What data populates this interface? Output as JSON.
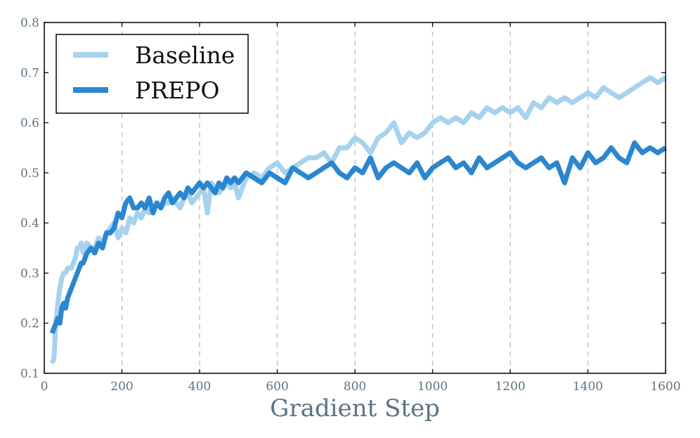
{
  "chart_data": {
    "type": "line",
    "title": "",
    "xlabel": "Gradient Step",
    "ylabel": "",
    "xlim": [
      0,
      1600
    ],
    "ylim": [
      0.1,
      0.8
    ],
    "xticks": [
      0,
      200,
      400,
      600,
      800,
      1000,
      1200,
      1400,
      1600
    ],
    "xtick_labels": [
      "0",
      "200",
      "400",
      "600",
      "800",
      "1000",
      "1200",
      "1400",
      "1600"
    ],
    "yticks": [
      0.1,
      0.2,
      0.3,
      0.4,
      0.5,
      0.6,
      0.7,
      0.8
    ],
    "ytick_labels": [
      "0.1",
      "0.2",
      "0.3",
      "0.4",
      "0.5",
      "0.6",
      "0.7",
      "0.8"
    ],
    "grid": "vertical dashed",
    "legend": "top-left",
    "series": [
      {
        "name": "Baseline",
        "color": "#a6d2ee",
        "x": [
          20,
          25,
          30,
          35,
          40,
          45,
          50,
          55,
          60,
          65,
          70,
          75,
          80,
          85,
          90,
          95,
          100,
          110,
          120,
          130,
          140,
          150,
          160,
          170,
          180,
          190,
          200,
          210,
          220,
          230,
          240,
          250,
          260,
          270,
          280,
          290,
          300,
          310,
          320,
          330,
          340,
          350,
          360,
          370,
          380,
          390,
          400,
          410,
          420,
          430,
          440,
          450,
          460,
          470,
          480,
          490,
          500,
          520,
          540,
          560,
          580,
          600,
          620,
          640,
          660,
          680,
          700,
          720,
          740,
          760,
          780,
          800,
          820,
          840,
          860,
          880,
          900,
          920,
          940,
          960,
          980,
          1000,
          1020,
          1040,
          1060,
          1080,
          1100,
          1120,
          1140,
          1160,
          1180,
          1200,
          1220,
          1240,
          1260,
          1280,
          1300,
          1320,
          1340,
          1360,
          1380,
          1400,
          1420,
          1440,
          1460,
          1480,
          1500,
          1520,
          1540,
          1560,
          1580,
          1600
        ],
        "values": [
          0.12,
          0.13,
          0.2,
          0.24,
          0.27,
          0.29,
          0.3,
          0.3,
          0.31,
          0.31,
          0.31,
          0.32,
          0.33,
          0.35,
          0.35,
          0.36,
          0.34,
          0.36,
          0.35,
          0.35,
          0.37,
          0.36,
          0.38,
          0.39,
          0.4,
          0.37,
          0.39,
          0.38,
          0.41,
          0.4,
          0.42,
          0.41,
          0.43,
          0.42,
          0.43,
          0.44,
          0.43,
          0.44,
          0.44,
          0.45,
          0.44,
          0.43,
          0.45,
          0.46,
          0.44,
          0.45,
          0.46,
          0.47,
          0.42,
          0.48,
          0.47,
          0.46,
          0.47,
          0.48,
          0.47,
          0.48,
          0.45,
          0.49,
          0.5,
          0.49,
          0.51,
          0.52,
          0.5,
          0.51,
          0.52,
          0.53,
          0.53,
          0.54,
          0.52,
          0.55,
          0.55,
          0.57,
          0.56,
          0.54,
          0.57,
          0.58,
          0.6,
          0.56,
          0.58,
          0.57,
          0.58,
          0.6,
          0.61,
          0.6,
          0.61,
          0.6,
          0.62,
          0.61,
          0.63,
          0.62,
          0.63,
          0.62,
          0.63,
          0.61,
          0.64,
          0.63,
          0.65,
          0.64,
          0.65,
          0.64,
          0.65,
          0.66,
          0.65,
          0.67,
          0.66,
          0.65,
          0.66,
          0.67,
          0.68,
          0.69,
          0.68,
          0.69
        ]
      },
      {
        "name": "PREPO",
        "color": "#2b86d0",
        "x": [
          20,
          25,
          30,
          35,
          40,
          45,
          50,
          55,
          60,
          65,
          70,
          75,
          80,
          85,
          90,
          95,
          100,
          110,
          120,
          130,
          140,
          150,
          160,
          170,
          180,
          190,
          200,
          210,
          220,
          230,
          240,
          250,
          260,
          270,
          280,
          290,
          300,
          310,
          320,
          330,
          340,
          350,
          360,
          370,
          380,
          390,
          400,
          410,
          420,
          430,
          440,
          450,
          460,
          470,
          480,
          490,
          500,
          520,
          540,
          560,
          580,
          600,
          620,
          640,
          660,
          680,
          700,
          720,
          740,
          760,
          780,
          800,
          820,
          840,
          860,
          880,
          900,
          920,
          940,
          960,
          980,
          1000,
          1020,
          1040,
          1060,
          1080,
          1100,
          1120,
          1140,
          1160,
          1180,
          1200,
          1220,
          1240,
          1260,
          1280,
          1300,
          1320,
          1340,
          1360,
          1380,
          1400,
          1420,
          1440,
          1460,
          1480,
          1500,
          1520,
          1540,
          1560,
          1580,
          1600
        ],
        "values": [
          0.18,
          0.19,
          0.2,
          0.21,
          0.2,
          0.23,
          0.24,
          0.23,
          0.25,
          0.26,
          0.27,
          0.28,
          0.29,
          0.3,
          0.31,
          0.32,
          0.32,
          0.34,
          0.35,
          0.34,
          0.36,
          0.35,
          0.38,
          0.38,
          0.39,
          0.42,
          0.41,
          0.44,
          0.45,
          0.43,
          0.43,
          0.44,
          0.43,
          0.45,
          0.42,
          0.44,
          0.43,
          0.45,
          0.46,
          0.44,
          0.45,
          0.46,
          0.45,
          0.47,
          0.46,
          0.47,
          0.48,
          0.47,
          0.48,
          0.47,
          0.46,
          0.48,
          0.47,
          0.49,
          0.48,
          0.49,
          0.48,
          0.5,
          0.49,
          0.48,
          0.5,
          0.49,
          0.48,
          0.51,
          0.5,
          0.49,
          0.5,
          0.51,
          0.52,
          0.5,
          0.49,
          0.51,
          0.5,
          0.53,
          0.49,
          0.51,
          0.52,
          0.51,
          0.5,
          0.52,
          0.49,
          0.51,
          0.52,
          0.53,
          0.51,
          0.52,
          0.5,
          0.53,
          0.51,
          0.52,
          0.53,
          0.54,
          0.52,
          0.51,
          0.52,
          0.53,
          0.51,
          0.52,
          0.48,
          0.53,
          0.51,
          0.54,
          0.52,
          0.53,
          0.55,
          0.53,
          0.52,
          0.56,
          0.54,
          0.55,
          0.54,
          0.55
        ]
      }
    ]
  }
}
